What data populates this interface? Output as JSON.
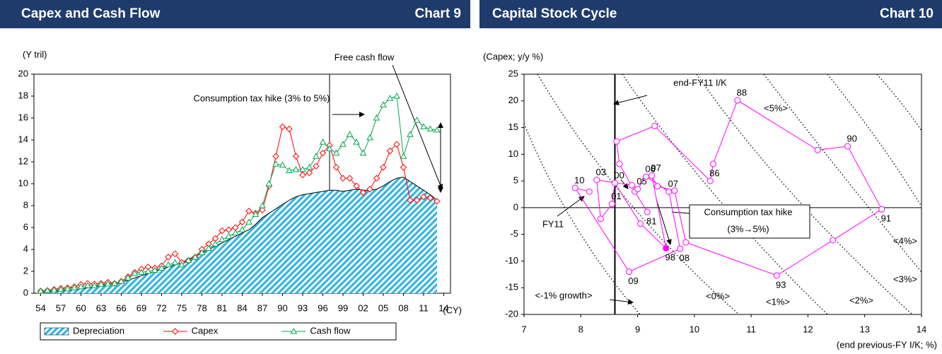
{
  "chart_data": [
    {
      "type": "line",
      "title": "Capex and Cash Flow",
      "chart_label": "Chart 9",
      "y_label": "(Y tril)",
      "x_label": "(CY)",
      "x": [
        1954,
        1955,
        1956,
        1957,
        1958,
        1959,
        1960,
        1961,
        1962,
        1963,
        1964,
        1965,
        1966,
        1967,
        1968,
        1969,
        1970,
        1971,
        1972,
        1973,
        1974,
        1975,
        1976,
        1977,
        1978,
        1979,
        1980,
        1981,
        1982,
        1983,
        1984,
        1985,
        1986,
        1987,
        1988,
        1989,
        1990,
        1991,
        1992,
        1993,
        1994,
        1995,
        1996,
        1997,
        1998,
        1999,
        2000,
        2001,
        2002,
        2003,
        2004,
        2005,
        2006,
        2007,
        2008,
        2009,
        2010,
        2011,
        2012,
        2013
      ],
      "series": [
        {
          "name": "Depreciation",
          "style": "area",
          "color": "#33b5e5",
          "values": [
            0.1,
            0.15,
            0.2,
            0.25,
            0.3,
            0.35,
            0.4,
            0.5,
            0.6,
            0.7,
            0.8,
            0.9,
            1.0,
            1.2,
            1.4,
            1.6,
            1.8,
            2.0,
            2.2,
            2.4,
            2.6,
            2.8,
            3.1,
            3.4,
            3.7,
            4.0,
            4.3,
            4.6,
            4.9,
            5.2,
            5.5,
            5.8,
            6.3,
            6.9,
            7.3,
            7.7,
            8.1,
            8.5,
            8.8,
            9.0,
            9.1,
            9.2,
            9.3,
            9.4,
            9.4,
            9.3,
            9.4,
            9.5,
            9.4,
            9.4,
            9.5,
            9.8,
            10.2,
            10.5,
            10.6,
            10.2,
            9.8,
            9.4,
            9.0,
            8.5
          ]
        },
        {
          "name": "Capex",
          "style": "line",
          "marker": "diamond",
          "color": "#ff0000",
          "values": [
            0.2,
            0.25,
            0.35,
            0.45,
            0.5,
            0.6,
            0.8,
            0.9,
            0.85,
            0.9,
            1.0,
            0.9,
            1.1,
            1.5,
            1.9,
            2.2,
            2.4,
            2.3,
            2.5,
            3.3,
            3.6,
            2.8,
            3.0,
            3.3,
            4.0,
            4.5,
            5.0,
            5.7,
            5.8,
            6.0,
            6.5,
            7.5,
            7.3,
            7.6,
            9.8,
            12.5,
            15.2,
            15.0,
            12.5,
            10.8,
            11.0,
            11.6,
            12.8,
            13.5,
            11.5,
            10.5,
            10.5,
            9.8,
            9.2,
            9.5,
            10.5,
            11.5,
            13.0,
            13.6,
            11.5,
            8.5,
            8.5,
            8.8,
            8.7,
            8.4
          ]
        },
        {
          "name": "Cash flow",
          "style": "line",
          "marker": "triangle",
          "color": "#00a651",
          "values": [
            0.2,
            0.25,
            0.3,
            0.35,
            0.4,
            0.5,
            0.6,
            0.7,
            0.7,
            0.8,
            0.85,
            0.9,
            1.1,
            1.4,
            1.8,
            1.9,
            2.0,
            2.1,
            2.3,
            2.6,
            2.8,
            2.6,
            3.0,
            3.3,
            3.7,
            4.1,
            4.5,
            4.9,
            5.2,
            5.5,
            5.8,
            6.5,
            7.2,
            8.0,
            10.0,
            11.8,
            11.7,
            11.2,
            11.3,
            11.3,
            11.5,
            12.5,
            13.8,
            13.2,
            12.8,
            13.6,
            14.5,
            13.8,
            12.8,
            14.2,
            16.0,
            17.2,
            17.8,
            18.0,
            12.5,
            14.5,
            15.8,
            15.2,
            15.0,
            14.9
          ]
        }
      ],
      "xlim": [
        1953,
        2015
      ],
      "xticks": [
        {
          "value": 1954,
          "label": "54"
        },
        {
          "value": 1957,
          "label": "57"
        },
        {
          "value": 1960,
          "label": "60"
        },
        {
          "value": 1963,
          "label": "63"
        },
        {
          "value": 1966,
          "label": "66"
        },
        {
          "value": 1969,
          "label": "69"
        },
        {
          "value": 1972,
          "label": "72"
        },
        {
          "value": 1975,
          "label": "75"
        },
        {
          "value": 1978,
          "label": "78"
        },
        {
          "value": 1981,
          "label": "81"
        },
        {
          "value": 1984,
          "label": "84"
        },
        {
          "value": 1987,
          "label": "87"
        },
        {
          "value": 1990,
          "label": "90"
        },
        {
          "value": 1993,
          "label": "93"
        },
        {
          "value": 1996,
          "label": "96"
        },
        {
          "value": 1999,
          "label": "99"
        },
        {
          "value": 2002,
          "label": "02"
        },
        {
          "value": 2005,
          "label": "05"
        },
        {
          "value": 2008,
          "label": "08"
        },
        {
          "value": 2011,
          "label": "11"
        },
        {
          "value": 2014,
          "label": "14"
        }
      ],
      "ylim": [
        0,
        20
      ],
      "yticks": [
        0,
        2,
        4,
        6,
        8,
        10,
        12,
        14,
        16,
        18,
        20
      ],
      "reference_x": 1997,
      "legend": "bottom",
      "annotations": [
        "Free cash flow",
        "Consumption tax hike (3% to 5%)"
      ]
    },
    {
      "type": "line",
      "title": "Capital Stock Cycle",
      "chart_label": "Chart 10",
      "y_label": "(Capex; y/y %)",
      "x_label": "(end previous-FY I/K; %)",
      "series": [
        {
          "style": "line",
          "marker": "circle",
          "color": "#ff00ff",
          "filled_points": [
            17
          ],
          "x": [
            9.17,
            8.95,
            8.68,
            8.63,
            9.3,
            10.28,
            10.33,
            10.76,
            12.17,
            12.7,
            13.3,
            12.44,
            11.45,
            9.85,
            9.65,
            9.35,
            9.25,
            9.5,
            9.05,
            8.6,
            8.55,
            8.35,
            8.28,
            8.9,
            9.0,
            9.15,
            9.55,
            9.75,
            8.85,
            7.9,
            8.15
          ],
          "values": [
            -0.8,
            3.0,
            8.2,
            12.4,
            15.3,
            5.0,
            8.2,
            20.1,
            10.8,
            11.5,
            -0.3,
            -6.1,
            -12.7,
            -6.5,
            3.2,
            4.0,
            6.0,
            -7.6,
            -3.0,
            4.6,
            0.7,
            -2.1,
            5.2,
            4.2,
            3.5,
            5.8,
            3.0,
            -7.7,
            -12.0,
            3.7,
            3.0
          ],
          "point_labels": [
            "81",
            null,
            null,
            null,
            null,
            "86",
            null,
            "88",
            null,
            "90",
            "91",
            null,
            "93",
            null,
            null,
            null,
            "97",
            "98",
            null,
            "00",
            "01",
            null,
            "03",
            null,
            "05",
            "06",
            "07",
            "08",
            "09",
            "10",
            null
          ]
        }
      ],
      "xlim": [
        7,
        14
      ],
      "xticks": [
        7,
        8,
        9,
        10,
        11,
        12,
        13,
        14
      ],
      "ylim": [
        -20,
        25
      ],
      "yticks": [
        -20,
        -15,
        -10,
        -5,
        0,
        5,
        10,
        15,
        20,
        25
      ],
      "reference_x": 8.6,
      "annotations": [
        "end-FY11 I/K",
        "Consumption tax hike",
        "(3%→5%)",
        "FY11",
        "<5%>",
        "<4%>",
        "<3%>",
        "<2%>",
        "<1%>",
        "<0%>",
        "<-1% growth>"
      ]
    }
  ]
}
